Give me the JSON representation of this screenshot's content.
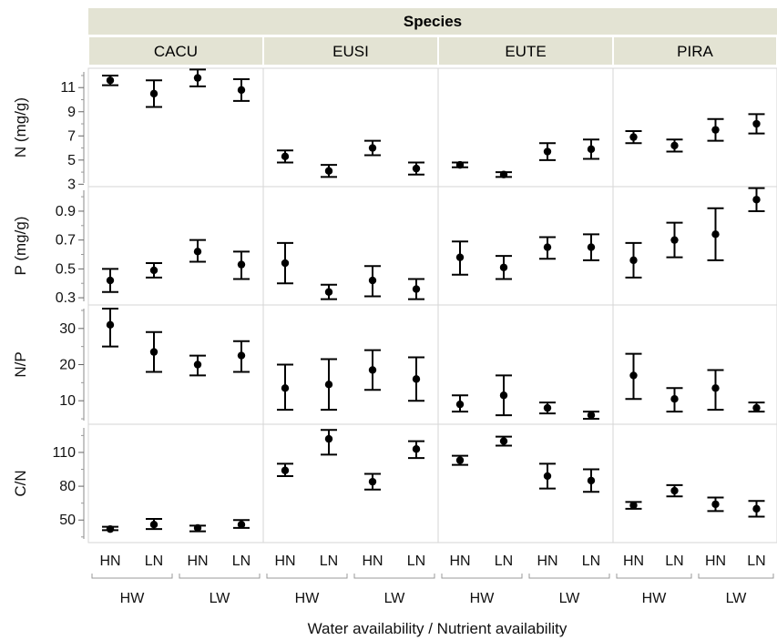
{
  "chart_data": {
    "type": "error-bar",
    "facet_title": "Species",
    "species": [
      "CACU",
      "EUSI",
      "EUTE",
      "PIRA"
    ],
    "x_categories": [
      "HN",
      "LN",
      "HN",
      "LN"
    ],
    "x_groups": [
      "HW",
      "LW"
    ],
    "xlabel": "Water availability / Nutrient availability",
    "rows": [
      {
        "ylabel": "N (mg/g)",
        "ylim": [
          2.8,
          12.6
        ],
        "yticks": [
          3,
          5,
          7,
          9,
          11
        ],
        "data": {
          "CACU": [
            {
              "mean": 11.6,
              "lo": 11.2,
              "hi": 12.0
            },
            {
              "mean": 10.5,
              "lo": 9.4,
              "hi": 11.6
            },
            {
              "mean": 11.8,
              "lo": 11.1,
              "hi": 12.5
            },
            {
              "mean": 10.8,
              "lo": 9.9,
              "hi": 11.7
            }
          ],
          "EUSI": [
            {
              "mean": 5.3,
              "lo": 4.8,
              "hi": 5.8
            },
            {
              "mean": 4.1,
              "lo": 3.6,
              "hi": 4.6
            },
            {
              "mean": 6.0,
              "lo": 5.4,
              "hi": 6.6
            },
            {
              "mean": 4.3,
              "lo": 3.8,
              "hi": 4.8
            }
          ],
          "EUTE": [
            {
              "mean": 4.6,
              "lo": 4.4,
              "hi": 4.8
            },
            {
              "mean": 3.8,
              "lo": 3.6,
              "hi": 4.0
            },
            {
              "mean": 5.7,
              "lo": 5.0,
              "hi": 6.4
            },
            {
              "mean": 5.9,
              "lo": 5.1,
              "hi": 6.7
            }
          ],
          "PIRA": [
            {
              "mean": 6.9,
              "lo": 6.4,
              "hi": 7.4
            },
            {
              "mean": 6.2,
              "lo": 5.7,
              "hi": 6.7
            },
            {
              "mean": 7.5,
              "lo": 6.6,
              "hi": 8.4
            },
            {
              "mean": 8.0,
              "lo": 7.2,
              "hi": 8.8
            }
          ]
        }
      },
      {
        "ylabel": "P (mg/g)",
        "ylim": [
          0.25,
          1.07
        ],
        "yticks": [
          0.3,
          0.5,
          0.7,
          0.9
        ],
        "data": {
          "CACU": [
            {
              "mean": 0.42,
              "lo": 0.34,
              "hi": 0.5
            },
            {
              "mean": 0.49,
              "lo": 0.44,
              "hi": 0.54
            },
            {
              "mean": 0.62,
              "lo": 0.55,
              "hi": 0.7
            },
            {
              "mean": 0.53,
              "lo": 0.43,
              "hi": 0.62
            }
          ],
          "EUSI": [
            {
              "mean": 0.54,
              "lo": 0.4,
              "hi": 0.68
            },
            {
              "mean": 0.34,
              "lo": 0.29,
              "hi": 0.39
            },
            {
              "mean": 0.42,
              "lo": 0.31,
              "hi": 0.52
            },
            {
              "mean": 0.36,
              "lo": 0.29,
              "hi": 0.43
            }
          ],
          "EUTE": [
            {
              "mean": 0.58,
              "lo": 0.46,
              "hi": 0.69
            },
            {
              "mean": 0.51,
              "lo": 0.43,
              "hi": 0.59
            },
            {
              "mean": 0.65,
              "lo": 0.57,
              "hi": 0.72
            },
            {
              "mean": 0.65,
              "lo": 0.56,
              "hi": 0.74
            }
          ],
          "PIRA": [
            {
              "mean": 0.56,
              "lo": 0.44,
              "hi": 0.68
            },
            {
              "mean": 0.7,
              "lo": 0.58,
              "hi": 0.82
            },
            {
              "mean": 0.74,
              "lo": 0.56,
              "hi": 0.92
            },
            {
              "mean": 0.98,
              "lo": 0.9,
              "hi": 1.06
            }
          ]
        }
      },
      {
        "ylabel": "N/P",
        "ylim": [
          3.5,
          36.5
        ],
        "yticks": [
          10,
          20,
          30
        ],
        "data": {
          "CACU": [
            {
              "mean": 31.0,
              "lo": 25.0,
              "hi": 35.5
            },
            {
              "mean": 23.5,
              "lo": 18.0,
              "hi": 29.0
            },
            {
              "mean": 20.0,
              "lo": 17.0,
              "hi": 22.5
            },
            {
              "mean": 22.5,
              "lo": 18.0,
              "hi": 26.5
            }
          ],
          "EUSI": [
            {
              "mean": 13.5,
              "lo": 7.5,
              "hi": 20.0
            },
            {
              "mean": 14.5,
              "lo": 7.5,
              "hi": 21.5
            },
            {
              "mean": 18.5,
              "lo": 13.0,
              "hi": 24.0
            },
            {
              "mean": 16.0,
              "lo": 10.0,
              "hi": 22.0
            }
          ],
          "EUTE": [
            {
              "mean": 9.0,
              "lo": 7.0,
              "hi": 11.5
            },
            {
              "mean": 11.5,
              "lo": 6.0,
              "hi": 17.0
            },
            {
              "mean": 8.0,
              "lo": 6.5,
              "hi": 9.5
            },
            {
              "mean": 6.0,
              "lo": 5.0,
              "hi": 7.0
            }
          ],
          "PIRA": [
            {
              "mean": 17.0,
              "lo": 10.5,
              "hi": 23.0
            },
            {
              "mean": 10.5,
              "lo": 7.0,
              "hi": 13.5
            },
            {
              "mean": 13.5,
              "lo": 7.5,
              "hi": 18.5
            },
            {
              "mean": 8.0,
              "lo": 7.0,
              "hi": 9.5
            }
          ]
        }
      },
      {
        "ylabel": "C/N",
        "ylim": [
          30,
          135
        ],
        "yticks": [
          50,
          80,
          110
        ],
        "data": {
          "CACU": [
            {
              "mean": 42,
              "lo": 41,
              "hi": 44
            },
            {
              "mean": 46,
              "lo": 42,
              "hi": 51
            },
            {
              "mean": 43,
              "lo": 40,
              "hi": 45
            },
            {
              "mean": 46,
              "lo": 43,
              "hi": 50
            }
          ],
          "EUSI": [
            {
              "mean": 94,
              "lo": 89,
              "hi": 100
            },
            {
              "mean": 122,
              "lo": 108,
              "hi": 130
            },
            {
              "mean": 84,
              "lo": 77,
              "hi": 91
            },
            {
              "mean": 113,
              "lo": 105,
              "hi": 120
            }
          ],
          "EUTE": [
            {
              "mean": 103,
              "lo": 99,
              "hi": 107
            },
            {
              "mean": 120,
              "lo": 116,
              "hi": 124
            },
            {
              "mean": 89,
              "lo": 78,
              "hi": 100
            },
            {
              "mean": 85,
              "lo": 75,
              "hi": 95
            }
          ],
          "PIRA": [
            {
              "mean": 63,
              "lo": 60,
              "hi": 66
            },
            {
              "mean": 76,
              "lo": 71,
              "hi": 81
            },
            {
              "mean": 64,
              "lo": 58,
              "hi": 70
            },
            {
              "mean": 60,
              "lo": 53,
              "hi": 67
            }
          ]
        }
      }
    ],
    "grid": false,
    "colors": {
      "header_bg": "#e3e3d3",
      "border": "#cccccc",
      "mark": "#000000"
    }
  }
}
